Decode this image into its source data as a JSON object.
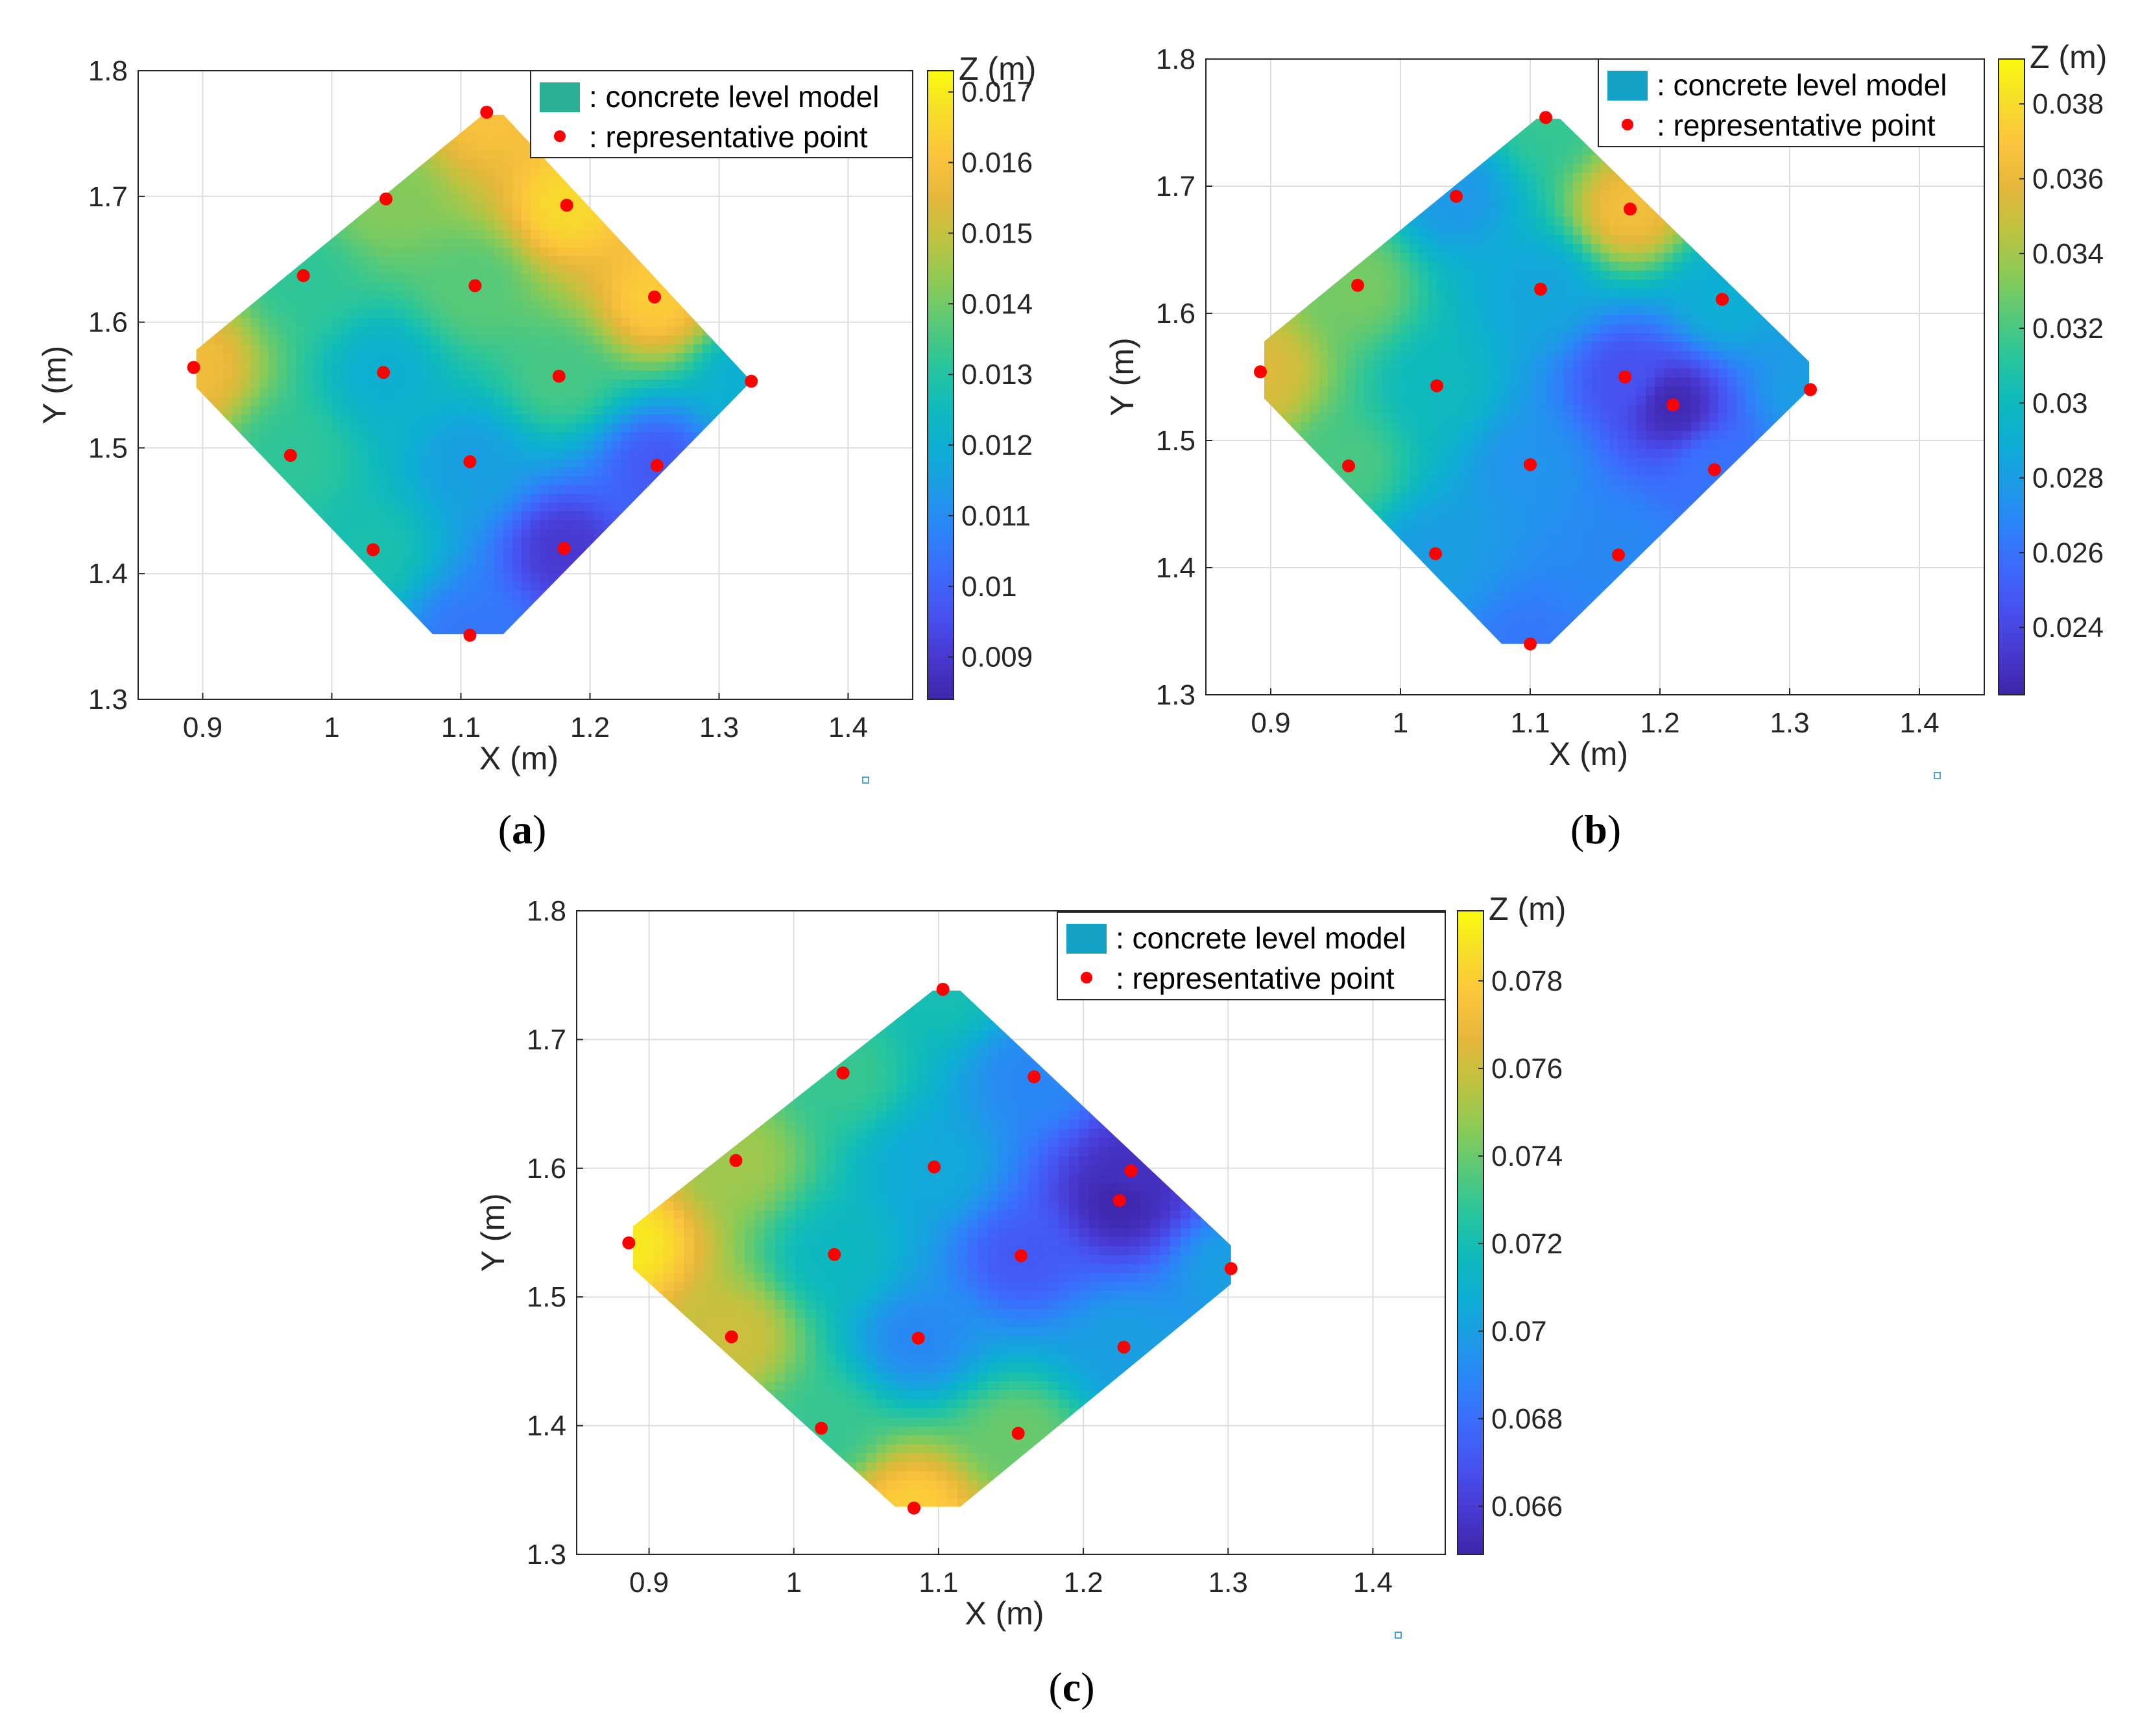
{
  "chart_data": [
    {
      "type": "contour",
      "caption": "a",
      "xlabel": "X (m)",
      "ylabel": "Y (m)",
      "xlim": [
        0.85,
        1.45
      ],
      "ylim": [
        1.3,
        1.8
      ],
      "xticks": [
        "0.9",
        "1",
        "1.1",
        "1.2",
        "1.3",
        "1.4"
      ],
      "yticks": [
        "1.3",
        "1.4",
        "1.5",
        "1.6",
        "1.7",
        "1.8"
      ],
      "grid": true,
      "legend": {
        "position": "top-right",
        "surface_label": ": concrete level model",
        "point_label": ": representative point"
      },
      "colorbar": {
        "label": "Z (m)",
        "range": [
          0.0084,
          0.0173
        ],
        "ticks": [
          "0.009",
          "0.01",
          "0.011",
          "0.012",
          "0.013",
          "0.014",
          "0.015",
          "0.016",
          "0.017"
        ]
      },
      "surface_outline": [
        [
          0.895,
          1.578
        ],
        [
          1.117,
          1.765
        ],
        [
          1.133,
          1.765
        ],
        [
          1.325,
          1.553
        ],
        [
          1.133,
          1.352
        ],
        [
          1.078,
          1.352
        ],
        [
          0.895,
          1.548
        ]
      ],
      "points": [
        {
          "x": 0.893,
          "y": 1.564,
          "z": 0.0158
        },
        {
          "x": 0.978,
          "y": 1.637,
          "z": 0.0132
        },
        {
          "x": 1.042,
          "y": 1.698,
          "z": 0.0142
        },
        {
          "x": 1.12,
          "y": 1.767,
          "z": 0.016
        },
        {
          "x": 1.182,
          "y": 1.693,
          "z": 0.0166
        },
        {
          "x": 1.25,
          "y": 1.62,
          "z": 0.0163
        },
        {
          "x": 1.325,
          "y": 1.553,
          "z": 0.012
        },
        {
          "x": 1.111,
          "y": 1.629,
          "z": 0.0137
        },
        {
          "x": 1.04,
          "y": 1.56,
          "z": 0.012
        },
        {
          "x": 1.176,
          "y": 1.557,
          "z": 0.0135
        },
        {
          "x": 0.968,
          "y": 1.494,
          "z": 0.0132
        },
        {
          "x": 1.107,
          "y": 1.489,
          "z": 0.0115
        },
        {
          "x": 1.252,
          "y": 1.486,
          "z": 0.0098
        },
        {
          "x": 1.032,
          "y": 1.419,
          "z": 0.0128
        },
        {
          "x": 1.18,
          "y": 1.42,
          "z": 0.009
        },
        {
          "x": 1.107,
          "y": 1.351,
          "z": 0.0105
        }
      ]
    },
    {
      "type": "contour",
      "caption": "b",
      "xlabel": "X (m)",
      "ylabel": "Y (m)",
      "xlim": [
        0.85,
        1.45
      ],
      "ylim": [
        1.3,
        1.8
      ],
      "xticks": [
        "0.9",
        "1",
        "1.1",
        "1.2",
        "1.3",
        "1.4"
      ],
      "yticks": [
        "1.3",
        "1.4",
        "1.5",
        "1.6",
        "1.7",
        "1.8"
      ],
      "grid": true,
      "legend": {
        "position": "top-right",
        "surface_label": ": concrete level model",
        "point_label": ": representative point"
      },
      "colorbar": {
        "label": "Z (m)",
        "range": [
          0.0222,
          0.0392
        ],
        "ticks": [
          "0.024",
          "0.026",
          "0.028",
          "0.03",
          "0.032",
          "0.034",
          "0.036",
          "0.038"
        ]
      },
      "surface_outline": [
        [
          0.895,
          1.578
        ],
        [
          1.105,
          1.753
        ],
        [
          1.123,
          1.753
        ],
        [
          1.315,
          1.562
        ],
        [
          1.315,
          1.54
        ],
        [
          1.115,
          1.34
        ],
        [
          1.078,
          1.34
        ],
        [
          0.895,
          1.533
        ]
      ],
      "points": [
        {
          "x": 0.892,
          "y": 1.554,
          "z": 0.0355
        },
        {
          "x": 0.967,
          "y": 1.622,
          "z": 0.033
        },
        {
          "x": 1.043,
          "y": 1.692,
          "z": 0.0278
        },
        {
          "x": 1.112,
          "y": 1.754,
          "z": 0.0315
        },
        {
          "x": 1.177,
          "y": 1.682,
          "z": 0.0365
        },
        {
          "x": 1.248,
          "y": 1.611,
          "z": 0.029
        },
        {
          "x": 1.316,
          "y": 1.54,
          "z": 0.028
        },
        {
          "x": 1.108,
          "y": 1.619,
          "z": 0.0285
        },
        {
          "x": 1.028,
          "y": 1.543,
          "z": 0.03
        },
        {
          "x": 1.173,
          "y": 1.55,
          "z": 0.0245
        },
        {
          "x": 0.96,
          "y": 1.48,
          "z": 0.032
        },
        {
          "x": 1.1,
          "y": 1.481,
          "z": 0.0275
        },
        {
          "x": 1.242,
          "y": 1.477,
          "z": 0.026
        },
        {
          "x": 1.027,
          "y": 1.411,
          "z": 0.028
        },
        {
          "x": 1.168,
          "y": 1.41,
          "z": 0.027
        },
        {
          "x": 1.1,
          "y": 1.34,
          "z": 0.0262
        },
        {
          "x": 1.21,
          "y": 1.528,
          "z": 0.0225
        }
      ]
    },
    {
      "type": "contour",
      "caption": "c",
      "xlabel": "X (m)",
      "ylabel": "Y (m)",
      "xlim": [
        0.85,
        1.45
      ],
      "ylim": [
        1.3,
        1.8
      ],
      "xticks": [
        "0.9",
        "1",
        "1.1",
        "1.2",
        "1.3",
        "1.4"
      ],
      "yticks": [
        "1.3",
        "1.4",
        "1.5",
        "1.6",
        "1.7",
        "1.8"
      ],
      "grid": true,
      "legend": {
        "position": "top-right",
        "surface_label": ": concrete level model",
        "point_label": ": representative point"
      },
      "colorbar": {
        "label": "Z (m)",
        "range": [
          0.0649,
          0.0796
        ],
        "ticks": [
          "0.066",
          "0.068",
          "0.07",
          "0.072",
          "0.074",
          "0.076",
          "0.078"
        ]
      },
      "surface_outline": [
        [
          0.889,
          1.555
        ],
        [
          1.096,
          1.738
        ],
        [
          1.115,
          1.738
        ],
        [
          1.302,
          1.54
        ],
        [
          1.302,
          1.51
        ],
        [
          1.115,
          1.337
        ],
        [
          1.07,
          1.337
        ],
        [
          0.889,
          1.522
        ]
      ],
      "points": [
        {
          "x": 0.886,
          "y": 1.542,
          "z": 0.079
        },
        {
          "x": 0.96,
          "y": 1.606,
          "z": 0.075
        },
        {
          "x": 1.034,
          "y": 1.674,
          "z": 0.073
        },
        {
          "x": 1.103,
          "y": 1.739,
          "z": 0.072
        },
        {
          "x": 1.166,
          "y": 1.671,
          "z": 0.069
        },
        {
          "x": 1.233,
          "y": 1.598,
          "z": 0.0655
        },
        {
          "x": 1.302,
          "y": 1.522,
          "z": 0.07
        },
        {
          "x": 1.097,
          "y": 1.601,
          "z": 0.0705
        },
        {
          "x": 1.028,
          "y": 1.533,
          "z": 0.0715
        },
        {
          "x": 1.157,
          "y": 1.532,
          "z": 0.0672
        },
        {
          "x": 0.957,
          "y": 1.469,
          "z": 0.076
        },
        {
          "x": 1.086,
          "y": 1.468,
          "z": 0.069
        },
        {
          "x": 1.228,
          "y": 1.461,
          "z": 0.07
        },
        {
          "x": 1.019,
          "y": 1.398,
          "z": 0.073
        },
        {
          "x": 1.155,
          "y": 1.394,
          "z": 0.074
        },
        {
          "x": 1.083,
          "y": 1.336,
          "z": 0.078
        },
        {
          "x": 1.225,
          "y": 1.575,
          "z": 0.065
        }
      ]
    }
  ],
  "colors": {
    "point": "#ff0000",
    "grid": "#dddddd",
    "axis": "#262626",
    "legend_patch_a": "#2bb096",
    "legend_patch_b": "#13a2c5",
    "legend_patch_c": "#13a2c5"
  },
  "colormap": [
    "#3e26a8",
    "#4838d0",
    "#4751ee",
    "#3d6afb",
    "#2c84f8",
    "#1d9be6",
    "#0daed3",
    "#0fbbba",
    "#2ac59b",
    "#5ac976",
    "#8fca54",
    "#c0c240",
    "#e5b73a",
    "#fbc43d",
    "#f8dd2a",
    "#f9fb0e"
  ]
}
